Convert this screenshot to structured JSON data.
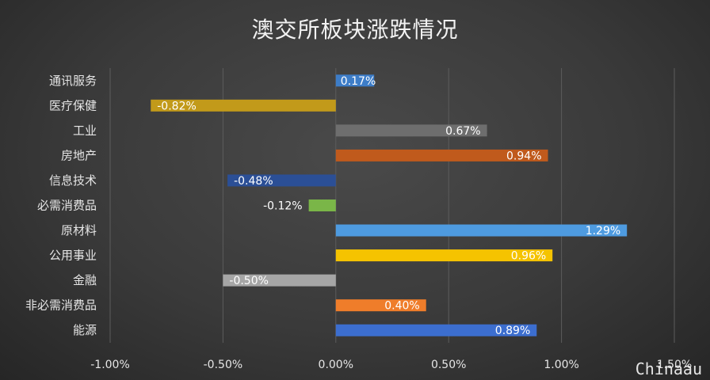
{
  "chart_data": {
    "type": "bar",
    "orientation": "horizontal",
    "title": "澳交所板块涨跌情况",
    "categories": [
      "通讯服务",
      "医疗保健",
      "工业",
      "房地产",
      "信息技术",
      "必需消费品",
      "原材料",
      "公用事业",
      "金融",
      "非必需消费品",
      "能源"
    ],
    "values": [
      0.17,
      -0.82,
      0.67,
      0.94,
      -0.48,
      -0.12,
      1.29,
      0.96,
      -0.5,
      0.4,
      0.89
    ],
    "value_labels": [
      "0.17%",
      "-0.82%",
      "0.67%",
      "0.94%",
      "-0.48%",
      "-0.12%",
      "1.29%",
      "0.96%",
      "-0.50%",
      "0.40%",
      "0.89%"
    ],
    "bar_colors": [
      "#3d7dc8",
      "#c29a1a",
      "#6e6e6e",
      "#c05a1c",
      "#2b4f96",
      "#7ab648",
      "#4e9be0",
      "#f5c300",
      "#a6a6a6",
      "#ef7d2a",
      "#3c6ecf"
    ],
    "xlim": [
      -1.0,
      1.5
    ],
    "xticks": [
      -1.0,
      -0.5,
      0.0,
      0.5,
      1.0,
      1.5
    ],
    "xtick_labels": [
      "-1.00%",
      "-0.50%",
      "0.00%",
      "0.50%",
      "1.00%",
      "1.50%"
    ],
    "grid": true,
    "legend": "none"
  },
  "watermark": "Chinaau"
}
